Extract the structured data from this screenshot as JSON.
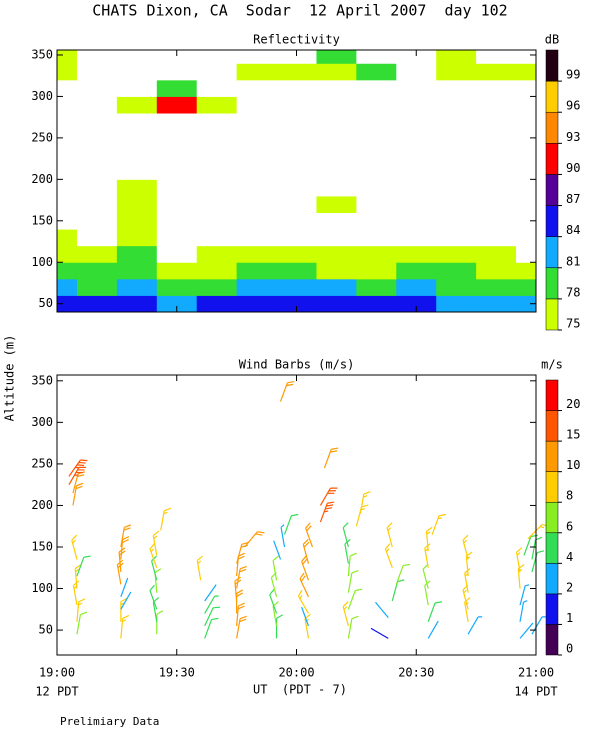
{
  "title": "CHATS Dixon, CA  Sodar  12 April 2007  day 102",
  "ylabel": "Altitude (m)",
  "xlabel": "UT  (PDT - 7)",
  "start_label": "12 PDT",
  "end_label": "14 PDT",
  "note": "Prelimiary Data",
  "chart_data": [
    {
      "type": "contour",
      "subtitle": "Reflectivity",
      "x": [
        0,
        10,
        20,
        30,
        40,
        50,
        60,
        70,
        80,
        90,
        100,
        110,
        120
      ],
      "y": [
        50,
        70,
        90,
        110,
        130,
        150,
        170,
        190,
        210,
        230,
        250,
        270,
        290,
        310,
        330,
        350
      ],
      "z": [
        [
          84,
          84,
          85,
          82,
          84,
          84,
          84,
          85,
          84,
          84,
          83,
          82,
          82
        ],
        [
          81,
          80,
          82,
          79,
          80,
          81,
          81,
          81,
          79,
          81,
          80,
          79,
          78
        ],
        [
          79,
          78,
          79,
          76,
          77,
          78,
          78,
          77,
          76,
          78,
          78,
          77,
          76
        ],
        [
          76,
          76,
          80,
          70,
          76,
          76,
          76,
          76,
          76,
          76,
          76,
          76,
          70
        ],
        [
          76,
          70,
          77,
          70,
          70,
          70,
          70,
          70,
          70,
          70,
          70,
          70,
          70
        ],
        [
          70,
          70,
          76,
          70,
          70,
          70,
          70,
          70,
          70,
          70,
          70,
          70,
          70
        ],
        [
          70,
          70,
          76,
          70,
          70,
          70,
          70,
          76,
          70,
          70,
          70,
          70,
          70
        ],
        [
          70,
          70,
          76,
          70,
          70,
          70,
          70,
          70,
          70,
          70,
          70,
          70,
          70
        ],
        [
          70,
          70,
          70,
          70,
          70,
          70,
          70,
          70,
          70,
          70,
          70,
          70,
          70
        ],
        [
          70,
          70,
          70,
          70,
          70,
          70,
          70,
          70,
          70,
          70,
          70,
          70,
          70
        ],
        [
          70,
          70,
          70,
          70,
          70,
          70,
          70,
          70,
          70,
          70,
          70,
          70,
          70
        ],
        [
          70,
          70,
          70,
          70,
          70,
          70,
          70,
          70,
          70,
          70,
          70,
          70,
          70
        ],
        [
          70,
          70,
          76,
          91,
          76,
          70,
          70,
          70,
          70,
          70,
          70,
          70,
          70
        ],
        [
          70,
          70,
          70,
          78,
          70,
          70,
          70,
          70,
          70,
          70,
          70,
          70,
          70
        ],
        [
          76,
          70,
          70,
          70,
          70,
          76,
          76,
          76,
          80,
          70,
          76,
          76,
          76
        ],
        [
          76,
          70,
          70,
          70,
          70,
          70,
          70,
          80,
          70,
          70,
          76,
          70,
          70
        ]
      ],
      "xlim": [
        0,
        120
      ],
      "xticks": [
        {
          "value": 0,
          "label": "19:00"
        },
        {
          "value": 30,
          "label": "19:30"
        },
        {
          "value": 60,
          "label": "20:00"
        },
        {
          "value": 90,
          "label": "20:30"
        },
        {
          "value": 120,
          "label": "21:00"
        }
      ],
      "ylim": [
        40,
        356
      ],
      "yticks": [
        50,
        100,
        150,
        200,
        250,
        300,
        350
      ],
      "colorbar": {
        "label": "dB",
        "levels": [
          75,
          78,
          81,
          84,
          87,
          90,
          93,
          96,
          99
        ],
        "colors": [
          "#ccff00",
          "#33dd33",
          "#11aaff",
          "#1111ee",
          "#550099",
          "#ff0000",
          "#ff8800",
          "#ffcc00",
          "#220011"
        ]
      }
    },
    {
      "type": "barbs",
      "subtitle": "Wind Barbs (m/s)",
      "x": [
        5,
        5,
        5,
        5,
        5,
        5,
        4,
        4,
        3,
        3,
        16,
        16,
        16,
        16,
        16,
        16,
        16,
        16,
        25,
        25,
        25,
        25,
        25,
        25,
        25,
        26,
        37,
        37,
        37,
        37,
        36,
        45,
        45,
        45,
        45,
        45,
        45,
        45,
        47,
        55,
        55,
        55,
        55,
        55,
        56,
        57,
        57,
        56,
        63,
        63,
        63,
        63,
        63,
        63,
        64,
        66,
        66,
        67,
        73,
        73,
        73,
        73,
        73,
        73,
        73,
        75,
        76,
        83,
        83,
        84,
        85,
        84,
        84,
        93,
        93,
        93,
        93,
        93,
        93,
        94,
        103,
        103,
        103,
        103,
        103,
        103,
        116,
        116,
        116,
        116,
        116,
        117,
        118,
        119,
        119,
        119
      ],
      "y": [
        45,
        60,
        80,
        100,
        115,
        135,
        200,
        215,
        225,
        235,
        40,
        60,
        75,
        90,
        105,
        120,
        135,
        150,
        45,
        60,
        75,
        95,
        110,
        125,
        140,
        170,
        40,
        55,
        70,
        85,
        110,
        40,
        55,
        70,
        85,
        100,
        115,
        130,
        150,
        40,
        55,
        70,
        90,
        110,
        135,
        150,
        165,
        325,
        40,
        55,
        70,
        90,
        110,
        130,
        150,
        180,
        200,
        245,
        40,
        55,
        75,
        95,
        115,
        130,
        150,
        175,
        190,
        40,
        65,
        85,
        105,
        125,
        150,
        40,
        60,
        80,
        100,
        125,
        145,
        165,
        45,
        60,
        75,
        95,
        115,
        135,
        40,
        60,
        80,
        100,
        120,
        140,
        160,
        45,
        120,
        135
      ],
      "speed": [
        6,
        9,
        9,
        9,
        5,
        9,
        12,
        12,
        18,
        18,
        9,
        9,
        2,
        2,
        10,
        10,
        10,
        10,
        7,
        5,
        5,
        6,
        5,
        9,
        9,
        9,
        5,
        5,
        4,
        2,
        9,
        10,
        10,
        10,
        10,
        10,
        10,
        10,
        10,
        5,
        6,
        5,
        6,
        6,
        2,
        3,
        5,
        10,
        9,
        2,
        9,
        10,
        10,
        10,
        10,
        18,
        17,
        12,
        7,
        9,
        6,
        7,
        6,
        5,
        5,
        9,
        9,
        1,
        2,
        5,
        7,
        9,
        9,
        2,
        5,
        6,
        6,
        9,
        9,
        8,
        3,
        9,
        9,
        9,
        9,
        9,
        2,
        3,
        3,
        9,
        9,
        5,
        9,
        3,
        5,
        5
      ],
      "direction": [
        10,
        5,
        350,
        355,
        20,
        345,
        10,
        15,
        30,
        35,
        5,
        0,
        30,
        20,
        350,
        355,
        5,
        10,
        0,
        350,
        340,
        355,
        345,
        340,
        350,
        10,
        20,
        25,
        30,
        35,
        350,
        10,
        5,
        0,
        355,
        10,
        5,
        15,
        40,
        0,
        350,
        340,
        345,
        350,
        340,
        350,
        20,
        20,
        350,
        340,
        330,
        335,
        340,
        345,
        340,
        20,
        30,
        20,
        10,
        345,
        20,
        10,
        5,
        350,
        345,
        15,
        10,
        300,
        320,
        15,
        20,
        340,
        345,
        30,
        20,
        350,
        345,
        350,
        355,
        20,
        30,
        350,
        345,
        350,
        355,
        345,
        40,
        10,
        15,
        355,
        350,
        20,
        45,
        30,
        15,
        10
      ],
      "xlim": [
        0,
        120
      ],
      "xticks": [
        {
          "value": 0,
          "label": "19:00"
        },
        {
          "value": 30,
          "label": "19:30"
        },
        {
          "value": 60,
          "label": "20:00"
        },
        {
          "value": 90,
          "label": "20:30"
        },
        {
          "value": 120,
          "label": "21:00"
        }
      ],
      "ylim": [
        20,
        357
      ],
      "yticks": [
        50,
        100,
        150,
        200,
        250,
        300,
        350
      ],
      "colorbar": {
        "label": "m/s",
        "levels": [
          0,
          1,
          2,
          4,
          6,
          8,
          10,
          15,
          20
        ],
        "colors": [
          "#440055",
          "#1111ee",
          "#11aaff",
          "#33dd55",
          "#88ee22",
          "#ffcc00",
          "#ff9900",
          "#ff5500",
          "#ff0000"
        ]
      }
    }
  ]
}
